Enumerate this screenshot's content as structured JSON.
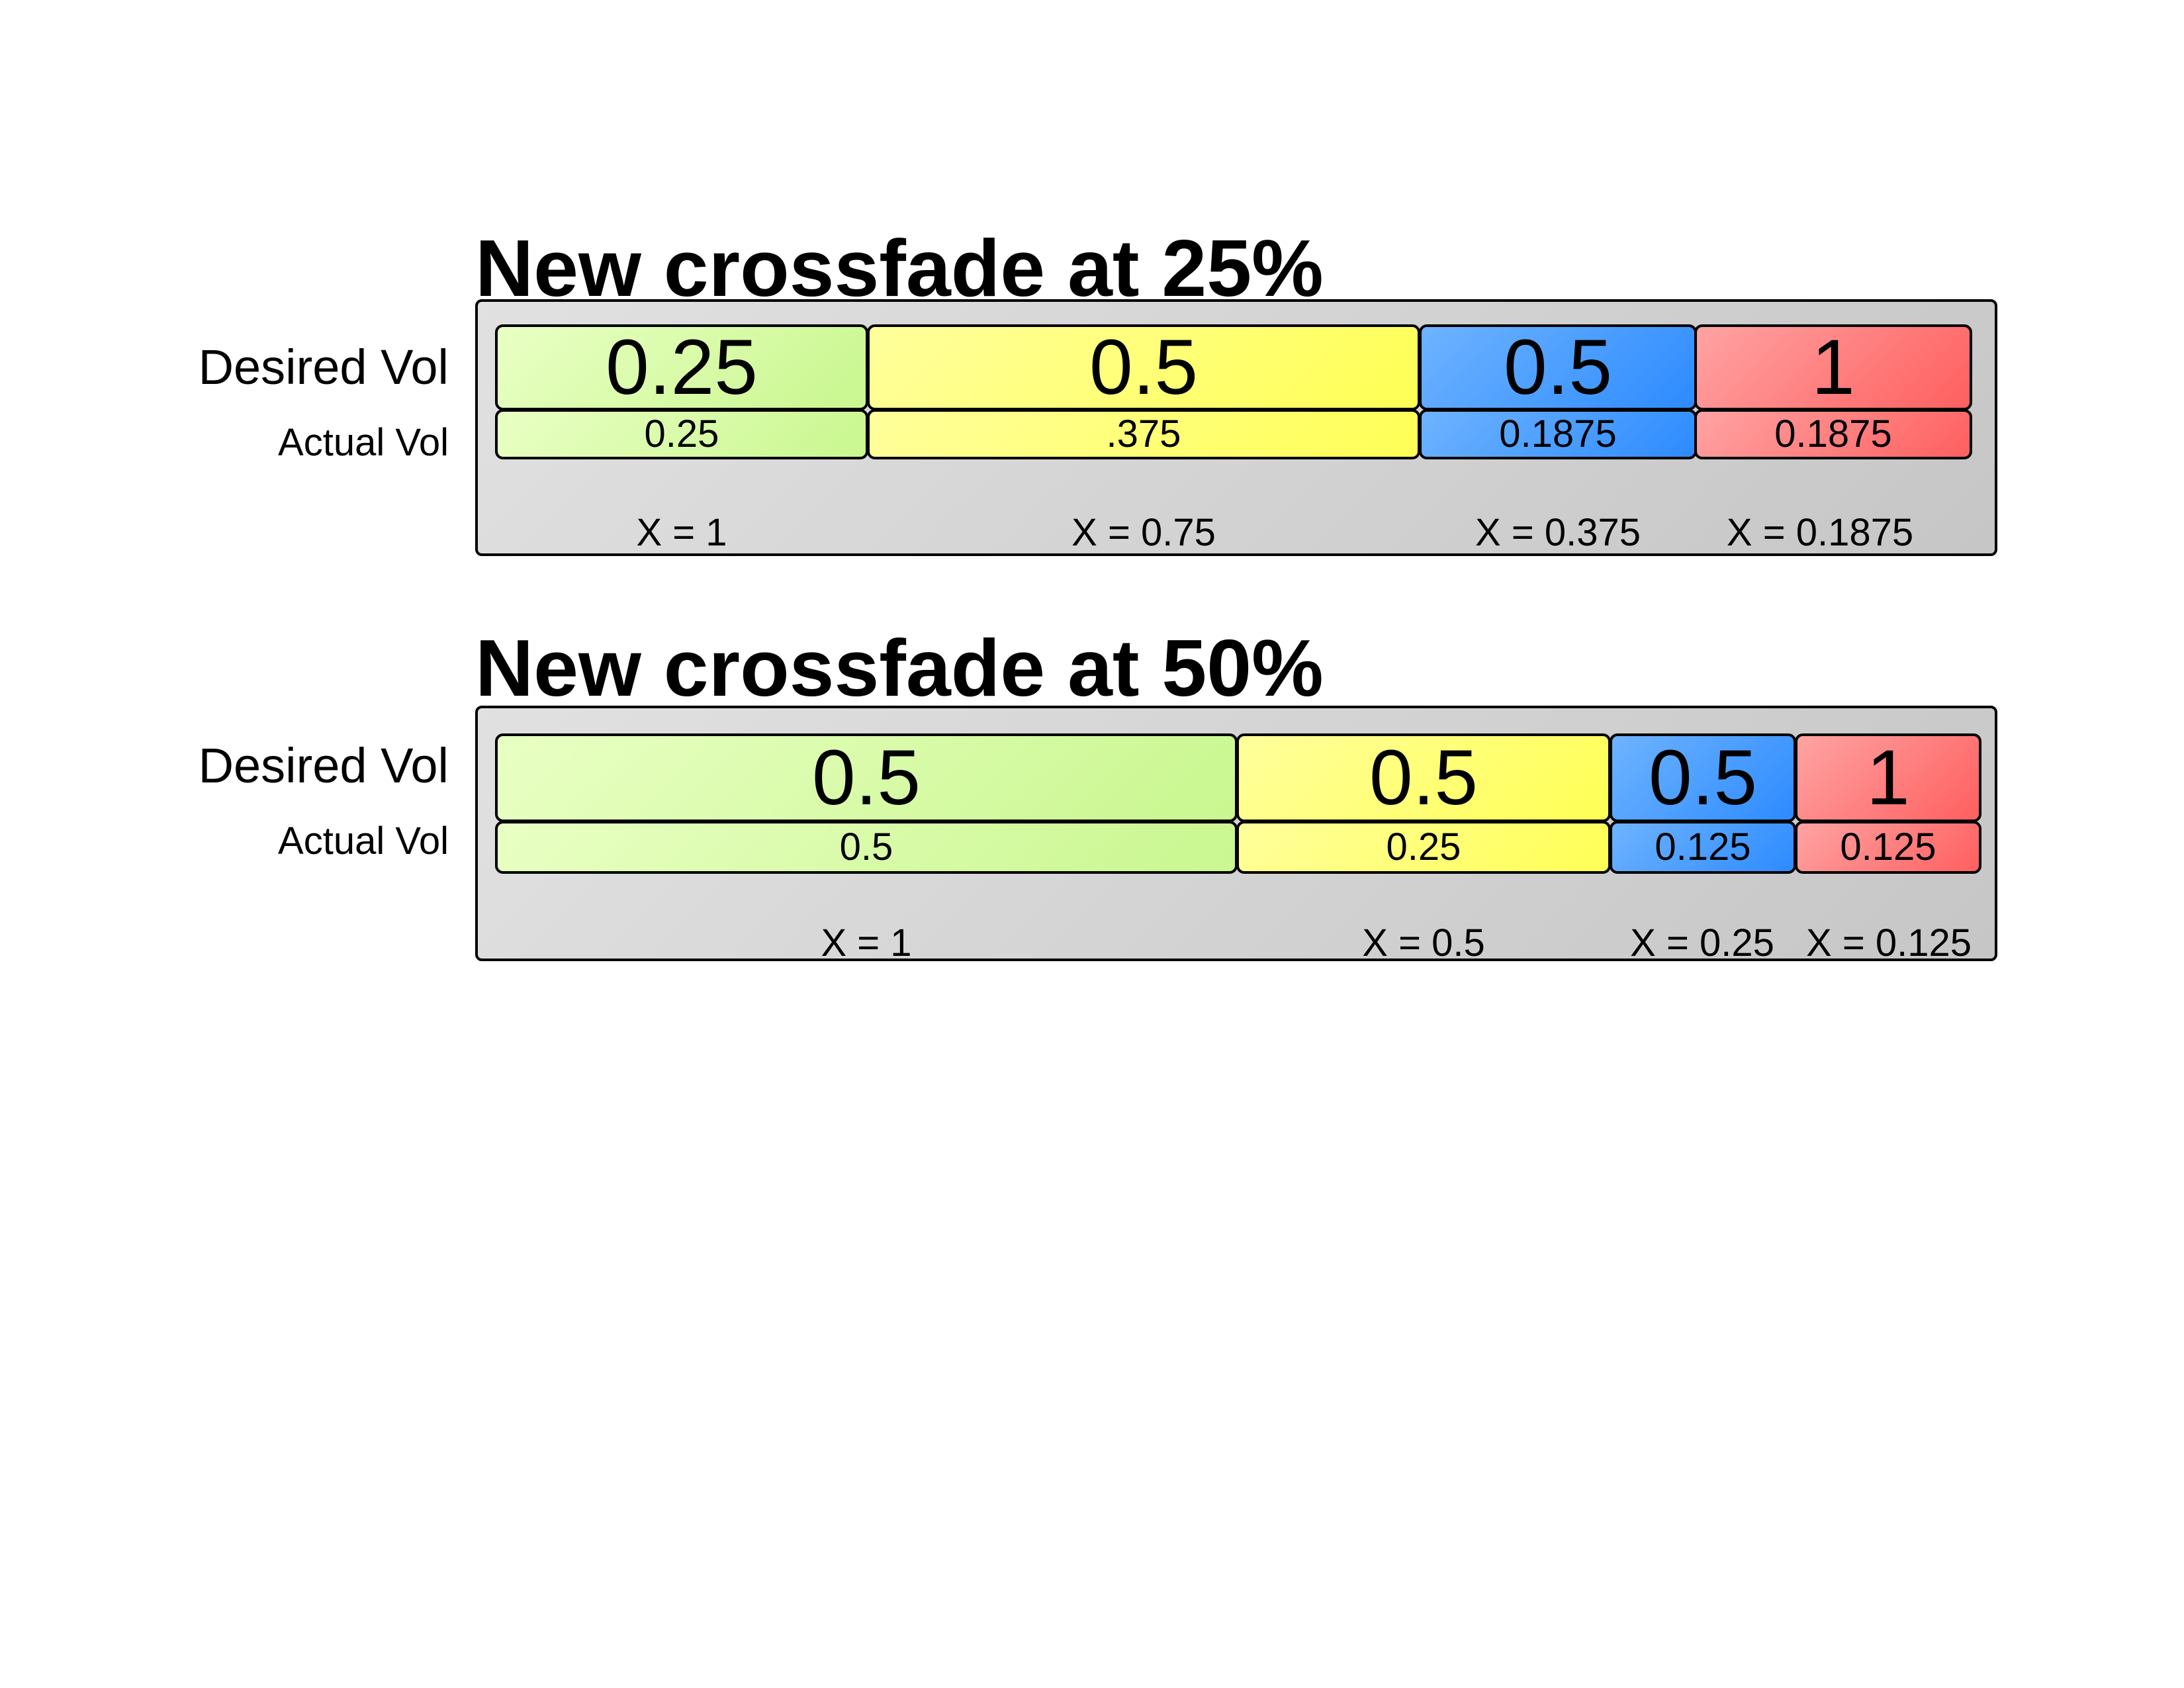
{
  "sections": [
    {
      "title": "New crossfade at 25%",
      "desired_label": "Desired Vol",
      "actual_label": "Actual Vol",
      "segments": [
        {
          "desired": "0.25",
          "actual": "0.25",
          "x": "X = 1",
          "color": "#d9fca8"
        },
        {
          "desired": "0.5",
          "actual": ".375",
          "x": "X = 0.75",
          "color": "#ffff77"
        },
        {
          "desired": "0.5",
          "actual": "0.1875",
          "x": "X = 0.375",
          "color": "#4a9dff"
        },
        {
          "desired": "1",
          "actual": "0.1875",
          "x": "X = 0.1875",
          "color": "#ff7f7f"
        }
      ]
    },
    {
      "title": "New crossfade at 50%",
      "desired_label": "Desired Vol",
      "actual_label": "Actual Vol",
      "segments": [
        {
          "desired": "0.5",
          "actual": "0.5",
          "x": "X = 1",
          "color": "#d9fca8"
        },
        {
          "desired": "0.5",
          "actual": "0.25",
          "x": "X = 0.5",
          "color": "#ffff77"
        },
        {
          "desired": "0.5",
          "actual": "0.125",
          "x": "X = 0.25",
          "color": "#4a9dff"
        },
        {
          "desired": "1",
          "actual": "0.125",
          "x": "X = 0.125",
          "color": "#ff7f7f"
        }
      ]
    }
  ]
}
